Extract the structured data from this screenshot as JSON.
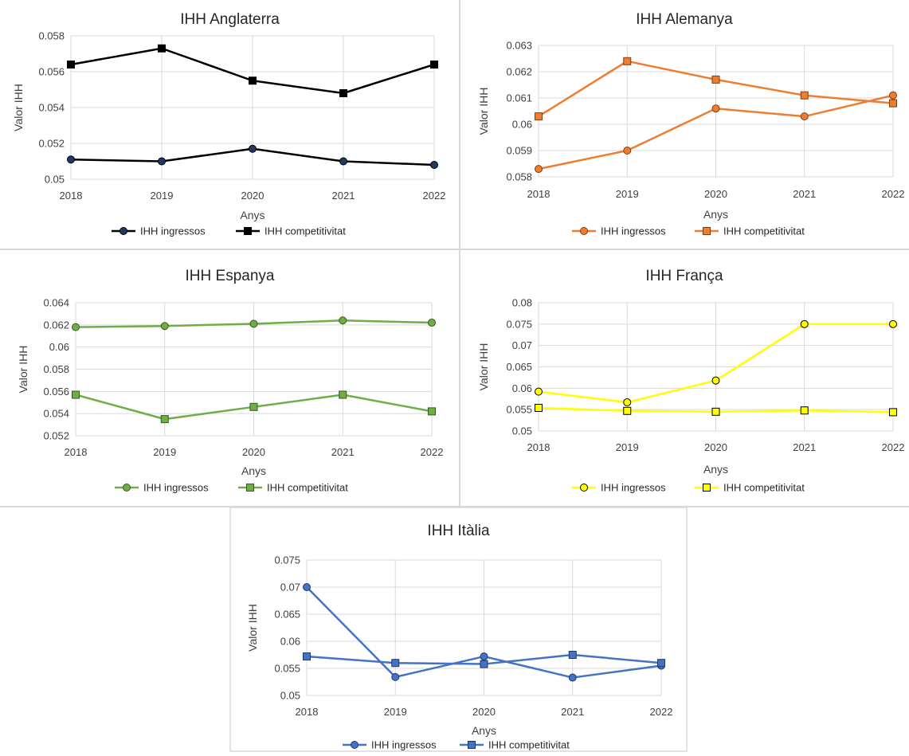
{
  "chart_data": [
    {
      "type": "line",
      "title": "IHH Anglaterra",
      "xlabel": "Anys",
      "ylabel": "Valor IHH",
      "categories": [
        "2018",
        "2019",
        "2020",
        "2021",
        "2022"
      ],
      "yticks": [
        "0.05",
        "0.052",
        "0.054",
        "0.056",
        "0.058"
      ],
      "ylim": [
        0.05,
        0.058
      ],
      "grid": true,
      "legend": "bottom",
      "series": [
        {
          "name": "IHH ingressos",
          "values": [
            0.0511,
            0.051,
            0.0517,
            0.051,
            0.0508
          ],
          "marker": "circle",
          "line_color": "#000000",
          "marker_fill": "#1f3864",
          "marker_stroke": "#000000"
        },
        {
          "name": "IHH competitivitat",
          "values": [
            0.0564,
            0.0573,
            0.0555,
            0.0548,
            0.0564
          ],
          "marker": "square",
          "line_color": "#000000",
          "marker_fill": "#000000",
          "marker_stroke": "#000000"
        }
      ]
    },
    {
      "type": "line",
      "title": "IHH Alemanya",
      "xlabel": "Anys",
      "ylabel": "Valor IHH",
      "categories": [
        "2018",
        "2019",
        "2020",
        "2021",
        "2022"
      ],
      "yticks": [
        "0.058",
        "0.059",
        "0.06",
        "0.061",
        "0.062",
        "0.063"
      ],
      "ylim": [
        0.058,
        0.063
      ],
      "grid": true,
      "legend": "bottom",
      "series": [
        {
          "name": "IHH ingressos",
          "values": [
            0.0583,
            0.059,
            0.0606,
            0.0603,
            0.0611
          ],
          "marker": "circle",
          "line_color": "#ed7d31",
          "marker_fill": "#ed7d31",
          "marker_stroke": "#843c0c"
        },
        {
          "name": "IHH competitivitat",
          "values": [
            0.0603,
            0.0624,
            0.0617,
            0.0611,
            0.0608
          ],
          "marker": "square",
          "line_color": "#ed7d31",
          "marker_fill": "#ed7d31",
          "marker_stroke": "#843c0c"
        }
      ]
    },
    {
      "type": "line",
      "title": "IHH Espanya",
      "xlabel": "Anys",
      "ylabel": "Valor IHH",
      "categories": [
        "2018",
        "2019",
        "2020",
        "2021",
        "2022"
      ],
      "yticks": [
        "0.052",
        "0.054",
        "0.056",
        "0.058",
        "0.06",
        "0.062",
        "0.064"
      ],
      "ylim": [
        0.052,
        0.064
      ],
      "grid": true,
      "legend": "bottom",
      "series": [
        {
          "name": "IHH ingressos",
          "values": [
            0.0618,
            0.0619,
            0.0621,
            0.0624,
            0.0622
          ],
          "marker": "circle",
          "line_color": "#70ad47",
          "marker_fill": "#70ad47",
          "marker_stroke": "#385723"
        },
        {
          "name": "IHH competitivitat",
          "values": [
            0.0557,
            0.0535,
            0.0546,
            0.0557,
            0.0542
          ],
          "marker": "square",
          "line_color": "#70ad47",
          "marker_fill": "#70ad47",
          "marker_stroke": "#385723"
        }
      ]
    },
    {
      "type": "line",
      "title": "IHH França",
      "xlabel": "Anys",
      "ylabel": "Valor IHH",
      "categories": [
        "2018",
        "2019",
        "2020",
        "2021",
        "2022"
      ],
      "yticks": [
        "0.05",
        "0.055",
        "0.06",
        "0.065",
        "0.07",
        "0.075",
        "0.08"
      ],
      "ylim": [
        0.05,
        0.08
      ],
      "grid": true,
      "legend": "bottom",
      "series": [
        {
          "name": "IHH ingressos",
          "values": [
            0.0592,
            0.0567,
            0.0618,
            0.075,
            0.075
          ],
          "marker": "circle",
          "line_color": "#ffff00",
          "marker_fill": "#ffff00",
          "marker_stroke": "#000000"
        },
        {
          "name": "IHH competitivitat",
          "values": [
            0.0554,
            0.0547,
            0.0545,
            0.0548,
            0.0544
          ],
          "marker": "square",
          "line_color": "#ffff00",
          "marker_fill": "#ffff00",
          "marker_stroke": "#000000"
        }
      ]
    },
    {
      "type": "line",
      "title": "IHH Itàlia",
      "xlabel": "Anys",
      "ylabel": "Valor IHH",
      "categories": [
        "2018",
        "2019",
        "2020",
        "2021",
        "2022"
      ],
      "yticks": [
        "0.05",
        "0.055",
        "0.06",
        "0.065",
        "0.07",
        "0.075"
      ],
      "ylim": [
        0.05,
        0.075
      ],
      "grid": true,
      "legend": "bottom",
      "series": [
        {
          "name": "IHH ingressos",
          "values": [
            0.07,
            0.0534,
            0.0572,
            0.0533,
            0.0555
          ],
          "marker": "circle",
          "line_color": "#4472c4",
          "marker_fill": "#4472c4",
          "marker_stroke": "#203864"
        },
        {
          "name": "IHH competitivitat",
          "values": [
            0.0572,
            0.056,
            0.0558,
            0.0575,
            0.056
          ],
          "marker": "square",
          "line_color": "#4472c4",
          "marker_fill": "#4472c4",
          "marker_stroke": "#203864"
        }
      ]
    }
  ]
}
